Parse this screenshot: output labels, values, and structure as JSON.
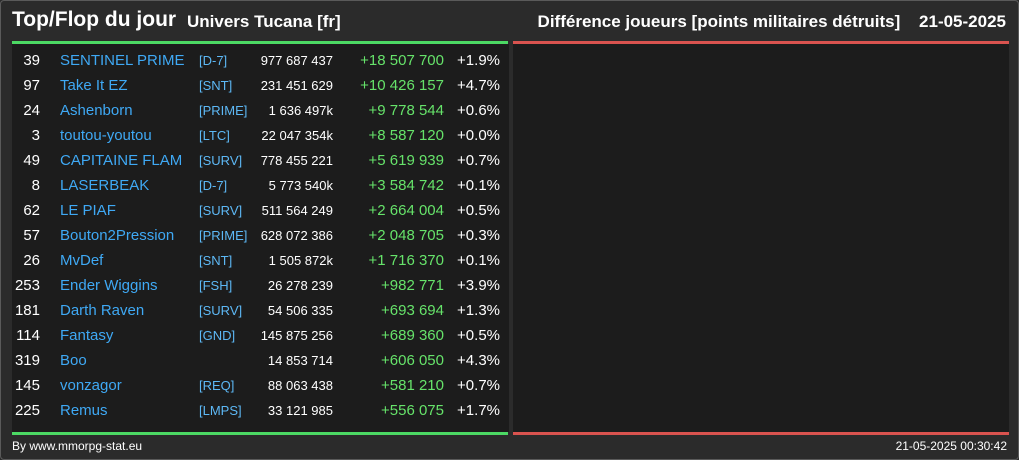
{
  "header": {
    "title": "Top/Flop du jour",
    "universe": "Univers Tucana [fr]",
    "metric": "Différence joueurs [points militaires détruits]",
    "date": "21-05-2025"
  },
  "colors": {
    "top_accent": "#4cd964",
    "flop_accent": "#d9534f",
    "player_name": "#3fa9f5",
    "gain": "#66e36a"
  },
  "top_rows": [
    {
      "rank": "39",
      "name": "SENTINEL PRIME",
      "alliance": "[D-7]",
      "points": "977 687 437",
      "diff": "+18 507 700",
      "pct": "+1.9%"
    },
    {
      "rank": "97",
      "name": "Take It EZ",
      "alliance": "[SNT]",
      "points": "231 451 629",
      "diff": "+10 426 157",
      "pct": "+4.7%"
    },
    {
      "rank": "24",
      "name": "Ashenborn",
      "alliance": "[PRIME]",
      "points": "1 636 497k",
      "diff": "+9 778 544",
      "pct": "+0.6%"
    },
    {
      "rank": "3",
      "name": "toutou-youtou",
      "alliance": "[LTC]",
      "points": "22 047 354k",
      "diff": "+8 587 120",
      "pct": "+0.0%"
    },
    {
      "rank": "49",
      "name": "CAPITAINE FLAM",
      "alliance": "[SURV]",
      "points": "778 455 221",
      "diff": "+5 619 939",
      "pct": "+0.7%"
    },
    {
      "rank": "8",
      "name": "LASERBEAK",
      "alliance": "[D-7]",
      "points": "5 773 540k",
      "diff": "+3 584 742",
      "pct": "+0.1%"
    },
    {
      "rank": "62",
      "name": "LE PIAF",
      "alliance": "[SURV]",
      "points": "511 564 249",
      "diff": "+2 664 004",
      "pct": "+0.5%"
    },
    {
      "rank": "57",
      "name": "Bouton2Pression",
      "alliance": "[PRIME]",
      "points": "628 072 386",
      "diff": "+2 048 705",
      "pct": "+0.3%"
    },
    {
      "rank": "26",
      "name": "MvDef",
      "alliance": "[SNT]",
      "points": "1 505 872k",
      "diff": "+1 716 370",
      "pct": "+0.1%"
    },
    {
      "rank": "253",
      "name": "Ender Wiggins",
      "alliance": "[FSH]",
      "points": "26 278 239",
      "diff": "+982 771",
      "pct": "+3.9%"
    },
    {
      "rank": "181",
      "name": "Darth Raven",
      "alliance": "[SURV]",
      "points": "54 506 335",
      "diff": "+693 694",
      "pct": "+1.3%"
    },
    {
      "rank": "114",
      "name": "Fantasy",
      "alliance": "[GND]",
      "points": "145 875 256",
      "diff": "+689 360",
      "pct": "+0.5%"
    },
    {
      "rank": "319",
      "name": "Boo",
      "alliance": "",
      "points": "14 853 714",
      "diff": "+606 050",
      "pct": "+4.3%"
    },
    {
      "rank": "145",
      "name": "vonzagor",
      "alliance": "[REQ]",
      "points": "88 063 438",
      "diff": "+581 210",
      "pct": "+0.7%"
    },
    {
      "rank": "225",
      "name": "Remus",
      "alliance": "[LMPS]",
      "points": "33 121 985",
      "diff": "+556 075",
      "pct": "+1.7%"
    }
  ],
  "footer": {
    "credit": "By www.mmorpg-stat.eu",
    "timestamp": "21-05-2025 00:30:42"
  }
}
